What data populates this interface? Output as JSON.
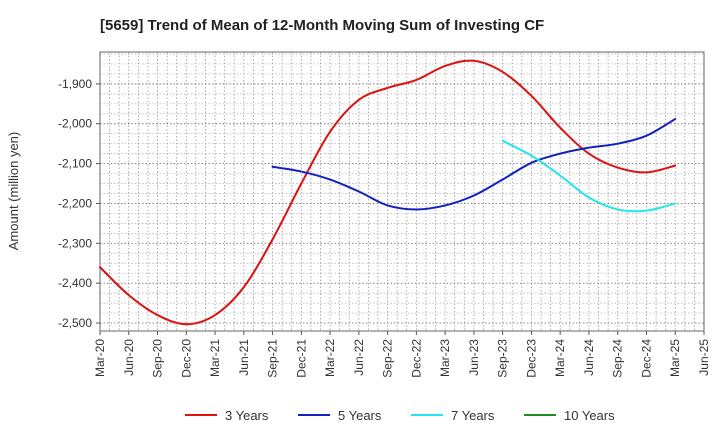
{
  "chart_data": {
    "type": "line",
    "title": "[5659]  Trend of Mean of 12-Month Moving Sum of Investing CF",
    "xlabel": "",
    "ylabel": "Amount (million yen)",
    "ylim": [
      -2520,
      -1820
    ],
    "yticks": [
      -1900,
      -2000,
      -2100,
      -2200,
      -2300,
      -2400,
      -2500
    ],
    "ytick_labels": [
      "-1,900",
      "-2,000",
      "-2,100",
      "-2,200",
      "-2,300",
      "-2,400",
      "-2,500"
    ],
    "x_categories": [
      "Mar-20",
      "Jun-20",
      "Sep-20",
      "Dec-20",
      "Mar-21",
      "Jun-21",
      "Sep-21",
      "Dec-21",
      "Mar-22",
      "Jun-22",
      "Sep-22",
      "Dec-22",
      "Mar-23",
      "Jun-23",
      "Sep-23",
      "Dec-23",
      "Mar-24",
      "Jun-24",
      "Sep-24",
      "Dec-24",
      "Mar-25",
      "Jun-25"
    ],
    "grid": true,
    "legend_position": "bottom",
    "series": [
      {
        "name": "3 Years",
        "color": "#dd1111",
        "values": [
          -2360,
          -2430,
          -2480,
          -2503,
          -2480,
          -2410,
          -2290,
          -2150,
          -2020,
          -1940,
          -1910,
          -1890,
          -1855,
          -1842,
          -1870,
          -1930,
          -2010,
          -2075,
          -2110,
          -2122,
          -2105,
          null
        ]
      },
      {
        "name": "5 Years",
        "color": "#1122bb",
        "values": [
          null,
          null,
          null,
          null,
          null,
          null,
          -2108,
          -2120,
          -2140,
          -2170,
          -2205,
          -2215,
          -2205,
          -2180,
          -2140,
          -2098,
          -2075,
          -2060,
          -2050,
          -2030,
          -1988,
          null
        ]
      },
      {
        "name": "7 Years",
        "color": "#22e6ee",
        "values": [
          null,
          null,
          null,
          null,
          null,
          null,
          null,
          null,
          null,
          null,
          null,
          null,
          null,
          null,
          -2043,
          -2080,
          -2130,
          -2185,
          -2215,
          -2218,
          -2200,
          null
        ]
      },
      {
        "name": "10 Years",
        "color": "#228822",
        "values": []
      }
    ]
  }
}
